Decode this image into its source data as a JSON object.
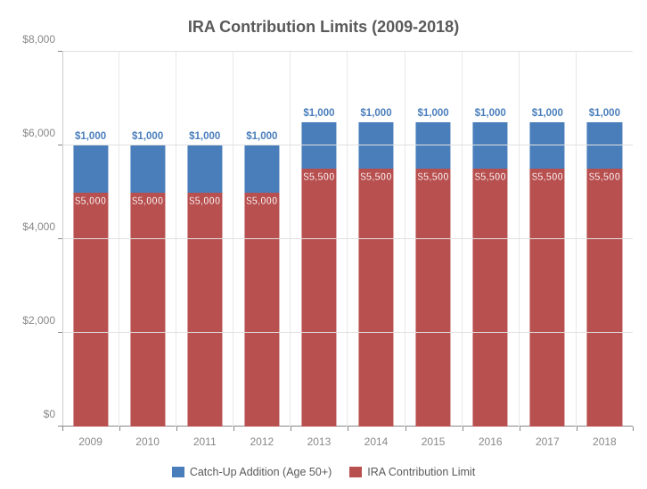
{
  "chart": {
    "type": "stacked-bar",
    "title": "IRA Contribution Limits (2009-2018)",
    "title_fontsize": 18,
    "title_color": "#595959",
    "background_color": "#ffffff",
    "grid_color": "#e0e0e0",
    "axis_label_color": "#888888",
    "axis_label_fontsize": 12,
    "bar_width_ratio": 0.62,
    "categories": [
      "2009",
      "2010",
      "2011",
      "2012",
      "2013",
      "2014",
      "2015",
      "2016",
      "2017",
      "2018"
    ],
    "series": [
      {
        "name": "IRA Contribution Limit",
        "color": "#b85050",
        "values": [
          5000,
          5000,
          5000,
          5000,
          5500,
          5500,
          5500,
          5500,
          5500,
          5500
        ],
        "labels": [
          "$5,000",
          "$5,000",
          "$5,000",
          "$5,000",
          "$5,500",
          "$5,500",
          "$5,500",
          "$5,500",
          "$5,500",
          "$5,500"
        ],
        "label_position": "inside-top",
        "label_color": "#ffffff",
        "label_outline": "#b85050"
      },
      {
        "name": "Catch-Up Addition (Age 50+)",
        "color": "#4a7ebb",
        "values": [
          1000,
          1000,
          1000,
          1000,
          1000,
          1000,
          1000,
          1000,
          1000,
          1000
        ],
        "labels": [
          "$1,000",
          "$1,000",
          "$1,000",
          "$1,000",
          "$1,000",
          "$1,000",
          "$1,000",
          "$1,000",
          "$1,000",
          "$1,000"
        ],
        "label_position": "above",
        "label_color": "#4a7ebb"
      }
    ],
    "y_axis": {
      "min": 0,
      "max": 8000,
      "tick_step": 2000,
      "tick_labels": [
        "$0",
        "$2,000",
        "$4,000",
        "$6,000",
        "$8,000"
      ],
      "tick_values": [
        0,
        2000,
        4000,
        6000,
        8000
      ]
    },
    "legend": {
      "position": "bottom",
      "order": [
        "Catch-Up Addition (Age 50+)",
        "IRA Contribution Limit"
      ]
    }
  }
}
